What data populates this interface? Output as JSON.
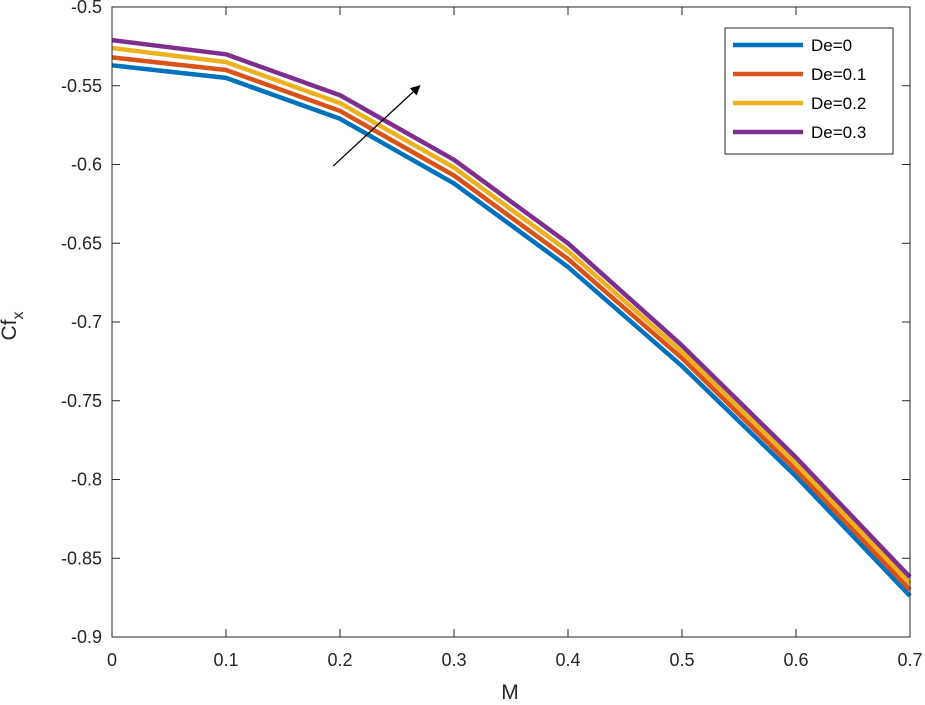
{
  "chart_data": {
    "type": "line",
    "title": "",
    "xlabel": "M",
    "ylabel": {
      "base": "Cf",
      "subscript": "x"
    },
    "xlim": [
      0,
      0.7
    ],
    "ylim": [
      -0.9,
      -0.5
    ],
    "x_ticks": [
      0,
      0.1,
      0.2,
      0.3,
      0.4,
      0.5,
      0.6,
      0.7
    ],
    "x_tick_labels": [
      "0",
      "0.1",
      "0.2",
      "0.3",
      "0.4",
      "0.5",
      "0.6",
      "0.7"
    ],
    "y_ticks": [
      -0.5,
      -0.55,
      -0.6,
      -0.65,
      -0.7,
      -0.75,
      -0.8,
      -0.85,
      -0.9
    ],
    "y_tick_labels": [
      "-0.5",
      "-0.55",
      "-0.6",
      "-0.65",
      "-0.7",
      "-0.75",
      "-0.8",
      "-0.85",
      "-0.9"
    ],
    "grid": false,
    "legend_position": "top-right",
    "x": [
      0,
      0.1,
      0.2,
      0.3,
      0.4,
      0.5,
      0.6,
      0.7
    ],
    "series": [
      {
        "name": "De=0",
        "color": "#0072BD",
        "values": [
          -0.537,
          -0.545,
          -0.571,
          -0.612,
          -0.665,
          -0.728,
          -0.798,
          -0.874
        ]
      },
      {
        "name": "De=0.1",
        "color": "#D95319",
        "values": [
          -0.532,
          -0.54,
          -0.566,
          -0.607,
          -0.66,
          -0.723,
          -0.794,
          -0.87
        ]
      },
      {
        "name": "De=0.2",
        "color": "#EDB120",
        "values": [
          -0.526,
          -0.535,
          -0.561,
          -0.602,
          -0.655,
          -0.719,
          -0.79,
          -0.866
        ]
      },
      {
        "name": "De=0.3",
        "color": "#7E2F8E",
        "values": [
          -0.521,
          -0.53,
          -0.556,
          -0.597,
          -0.65,
          -0.715,
          -0.786,
          -0.862
        ]
      }
    ],
    "annotations": [
      {
        "type": "arrow",
        "from": {
          "x": 0.194,
          "y": -0.601
        },
        "to": {
          "x": 0.27,
          "y": -0.55
        },
        "meaning": "increasing De"
      }
    ]
  }
}
